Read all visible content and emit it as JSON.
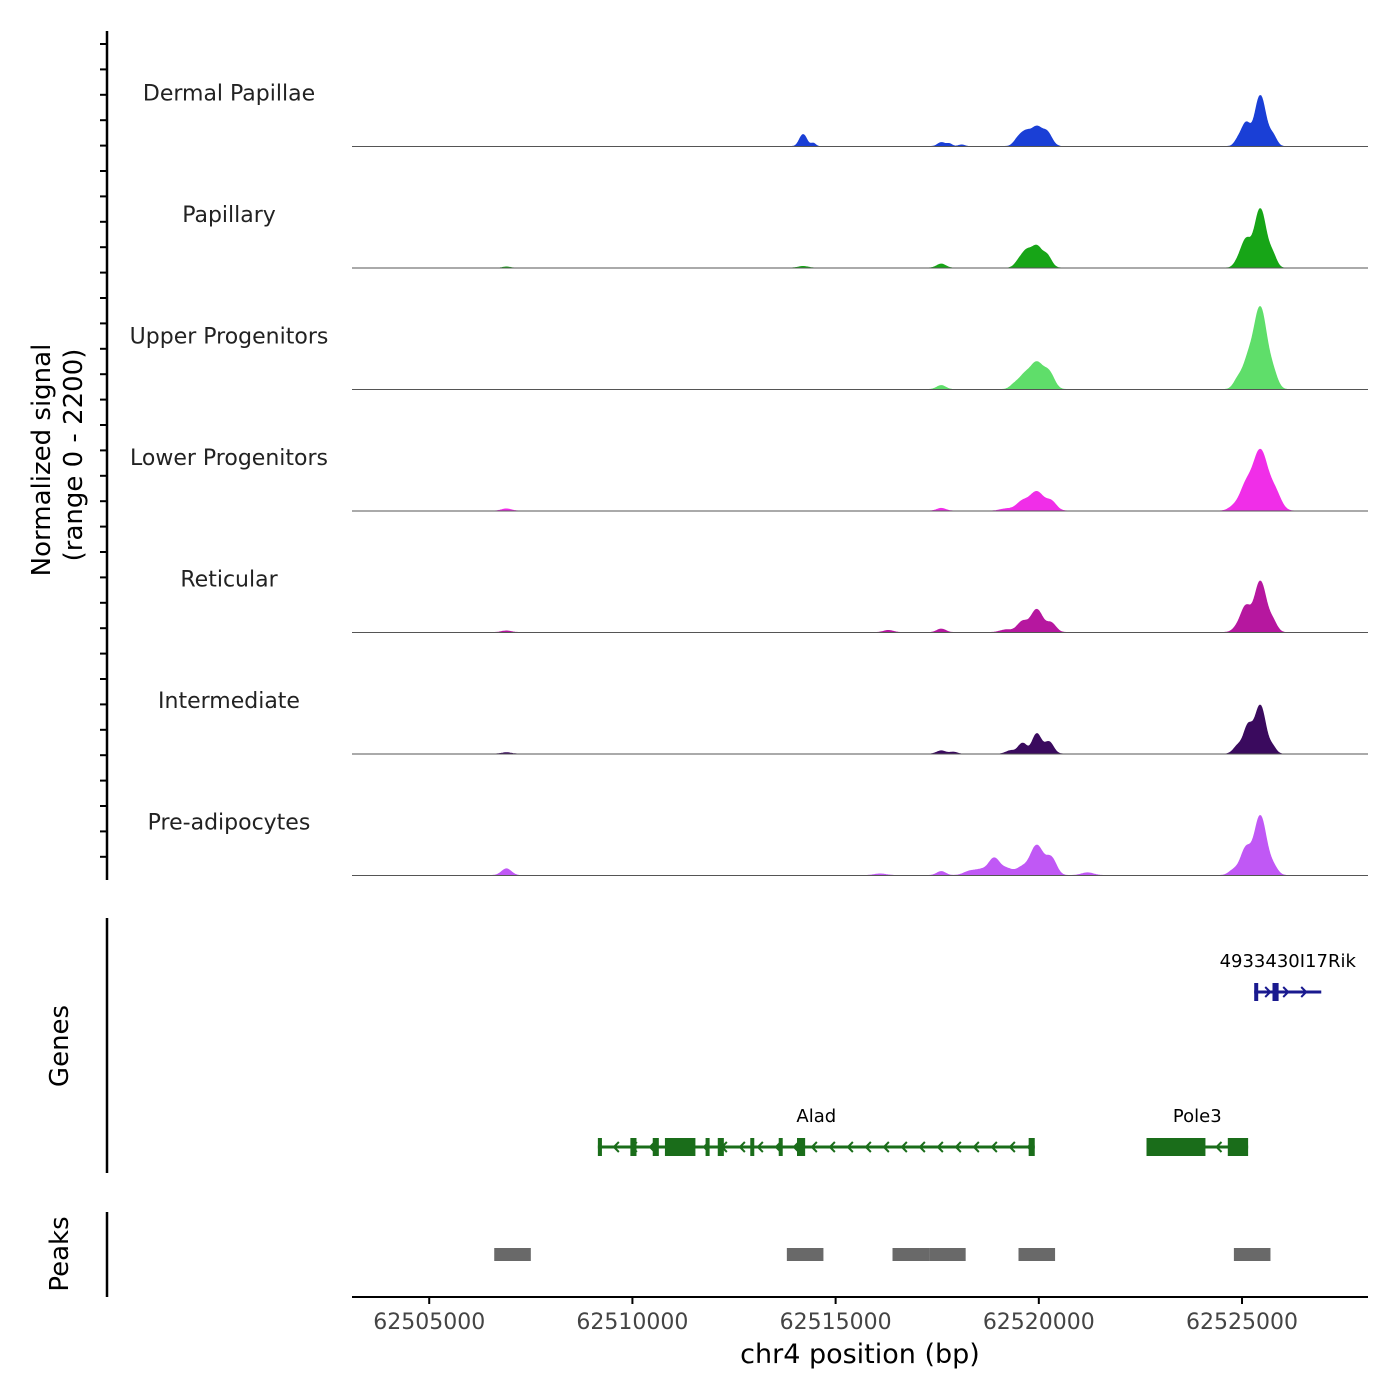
{
  "chart_data": {
    "type": "area",
    "title": "",
    "ylabel_line1": "Normalized signal",
    "ylabel_line2": "(range 0 - 2200)",
    "y_range": [
      0,
      2200
    ],
    "xlabel": "chr4 position (bp)",
    "x_range": [
      62503100,
      62528100
    ],
    "x_ticks": [
      62505000,
      62510000,
      62515000,
      62520000,
      62525000
    ],
    "x_tick_labels": [
      "62505000",
      "62510000",
      "62515000",
      "62520000",
      "62525000"
    ],
    "tracks": [
      {
        "name": "Dermal Papillae",
        "color": "#1a3fd6",
        "peaks": [
          [
            62514200,
            450,
            90
          ],
          [
            62514450,
            120,
            60
          ],
          [
            62517600,
            150,
            90
          ],
          [
            62517800,
            100,
            70
          ],
          [
            62518100,
            60,
            80
          ],
          [
            62519500,
            280,
            110
          ],
          [
            62519700,
            500,
            120
          ],
          [
            62519950,
            650,
            120
          ],
          [
            62520200,
            520,
            120
          ],
          [
            62524900,
            220,
            90
          ],
          [
            62525100,
            850,
            110
          ],
          [
            62525450,
            1900,
            130
          ],
          [
            62525750,
            400,
            100
          ]
        ]
      },
      {
        "name": "Papillary",
        "color": "#17a517",
        "peaks": [
          [
            62506900,
            40,
            90
          ],
          [
            62514200,
            60,
            120
          ],
          [
            62517600,
            150,
            110
          ],
          [
            62519500,
            200,
            100
          ],
          [
            62519700,
            600,
            120
          ],
          [
            62519950,
            750,
            120
          ],
          [
            62520200,
            450,
            110
          ],
          [
            62524900,
            200,
            100
          ],
          [
            62525100,
            1000,
            120
          ],
          [
            62525450,
            2200,
            140
          ],
          [
            62525750,
            450,
            100
          ]
        ]
      },
      {
        "name": "Upper Progenitors",
        "color": "#5fde6a",
        "peaks": [
          [
            62517600,
            150,
            110
          ],
          [
            62519400,
            160,
            110
          ],
          [
            62519650,
            500,
            140
          ],
          [
            62519950,
            950,
            150
          ],
          [
            62520250,
            600,
            130
          ],
          [
            62524900,
            350,
            110
          ],
          [
            62525150,
            1000,
            130
          ],
          [
            62525450,
            3000,
            150
          ],
          [
            62525750,
            600,
            120
          ]
        ]
      },
      {
        "name": "Lower Progenitors",
        "color": "#f02ee8",
        "peaks": [
          [
            62506900,
            80,
            120
          ],
          [
            62517600,
            100,
            110
          ],
          [
            62519200,
            80,
            150
          ],
          [
            62519600,
            350,
            150
          ],
          [
            62519950,
            700,
            160
          ],
          [
            62520300,
            350,
            130
          ],
          [
            62524800,
            150,
            130
          ],
          [
            62525100,
            900,
            150
          ],
          [
            62525450,
            2200,
            170
          ],
          [
            62525800,
            700,
            150
          ]
        ]
      },
      {
        "name": "Reticular",
        "color": "#b6179f",
        "peaks": [
          [
            62506900,
            60,
            120
          ],
          [
            62516300,
            80,
            120
          ],
          [
            62517600,
            130,
            110
          ],
          [
            62519200,
            100,
            150
          ],
          [
            62519600,
            400,
            130
          ],
          [
            62519950,
            850,
            140
          ],
          [
            62520300,
            350,
            120
          ],
          [
            62524900,
            200,
            120
          ],
          [
            62525100,
            900,
            120
          ],
          [
            62525450,
            1900,
            140
          ],
          [
            62525750,
            400,
            110
          ]
        ]
      },
      {
        "name": "Intermediate",
        "color": "#3a0a5e",
        "peaks": [
          [
            62506900,
            50,
            120
          ],
          [
            62517600,
            120,
            110
          ],
          [
            62517900,
            70,
            90
          ],
          [
            62519300,
            120,
            110
          ],
          [
            62519600,
            400,
            110
          ],
          [
            62519950,
            750,
            110
          ],
          [
            62520250,
            450,
            110
          ],
          [
            62524900,
            300,
            110
          ],
          [
            62525150,
            1000,
            110
          ],
          [
            62525450,
            1800,
            130
          ],
          [
            62525750,
            250,
            90
          ]
        ]
      },
      {
        "name": "Pre-adipocytes",
        "color": "#c058f5",
        "peaks": [
          [
            62506900,
            250,
            120
          ],
          [
            62516100,
            60,
            150
          ],
          [
            62517600,
            150,
            110
          ],
          [
            62518300,
            150,
            150
          ],
          [
            62518600,
            200,
            150
          ],
          [
            62518900,
            600,
            130
          ],
          [
            62519200,
            250,
            150
          ],
          [
            62519600,
            300,
            150
          ],
          [
            62519950,
            1100,
            150
          ],
          [
            62520300,
            650,
            130
          ],
          [
            62521200,
            100,
            150
          ],
          [
            62524800,
            200,
            120
          ],
          [
            62525100,
            1000,
            130
          ],
          [
            62525450,
            2200,
            140
          ],
          [
            62525750,
            350,
            120
          ]
        ]
      }
    ],
    "genes_label": "Genes",
    "genes": [
      {
        "name": "Alad",
        "color": "#1a6d1a",
        "start": 62509150,
        "end": 62519900,
        "strand": "-",
        "row": 2,
        "exons": [
          [
            62509150,
            62509250
          ],
          [
            62509950,
            62510100
          ],
          [
            62510500,
            62510650
          ],
          [
            62510800,
            62511550
          ],
          [
            62511800,
            62511900
          ],
          [
            62512100,
            62512250
          ],
          [
            62512900,
            62512950
          ],
          [
            62513600,
            62513650
          ],
          [
            62514050,
            62514250
          ],
          [
            62519750,
            62519900
          ]
        ]
      },
      {
        "name": "Pole3",
        "color": "#1a6d1a",
        "start": 62522650,
        "end": 62525150,
        "strand": "-",
        "row": 2,
        "exons": [
          [
            62522650,
            62524100
          ],
          [
            62524650,
            62525150
          ]
        ]
      },
      {
        "name": "4933430I17Rik",
        "color": "#1a1a8f",
        "start": 62525300,
        "end": 62526950,
        "strand": "+",
        "row": 1,
        "exons": [
          [
            62525300,
            62525350
          ],
          [
            62525750,
            62525900
          ]
        ]
      }
    ],
    "peaks_label": "Peaks",
    "peak_regions": [
      [
        62506600,
        62507500
      ],
      [
        62513800,
        62514700
      ],
      [
        62516400,
        62517300
      ],
      [
        62517300,
        62518200
      ],
      [
        62519500,
        62520400
      ],
      [
        62524800,
        62525700
      ]
    ]
  }
}
